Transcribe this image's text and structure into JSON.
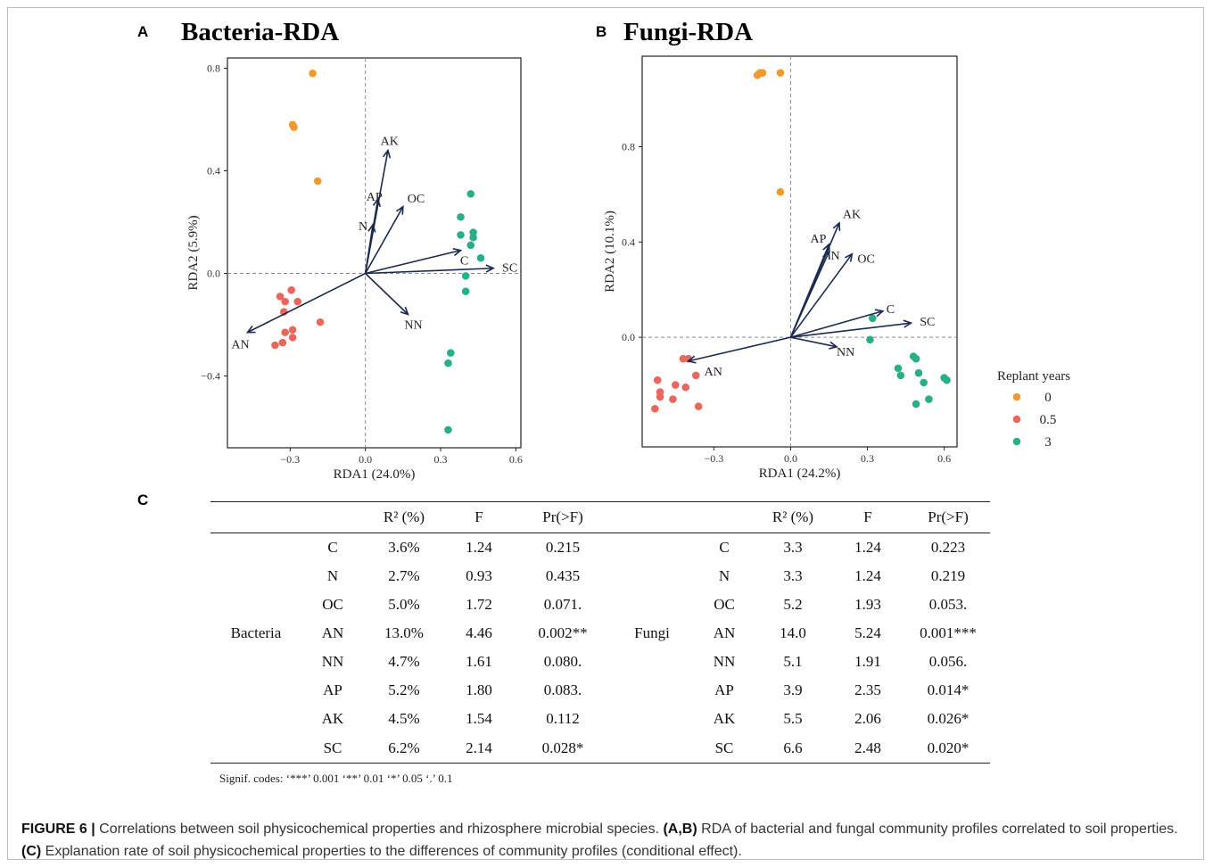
{
  "panels": {
    "a_letter": "A",
    "b_letter": "B",
    "c_letter": "C"
  },
  "chart_data": [
    {
      "type": "scatter",
      "title": "Bacteria-RDA",
      "xlabel": "RDA1 (24.0%)",
      "ylabel": "RDA2 (5.9%)",
      "xlim": [
        -0.55,
        0.62
      ],
      "ylim": [
        -0.68,
        0.84
      ],
      "xticks": [
        -0.3,
        0.0,
        0.3,
        0.6
      ],
      "xtick_labels": [
        "−0.3",
        "0.0",
        "0.3",
        "0.6"
      ],
      "yticks": [
        -0.4,
        0.0,
        0.4,
        0.8
      ],
      "ytick_labels": [
        "−0.4",
        "0.0",
        "0.4",
        "0.8"
      ],
      "grid": false,
      "reference_lines": "dashed lines at x=0 and y=0",
      "series": [
        {
          "name": "0",
          "color": "#f09a2e",
          "points": [
            [
              -0.21,
              0.78
            ],
            [
              -0.29,
              0.58
            ],
            [
              -0.285,
              0.57
            ],
            [
              -0.19,
              0.36
            ]
          ]
        },
        {
          "name": "0.5",
          "color": "#e8685e",
          "points": [
            [
              -0.34,
              -0.09
            ],
            [
              -0.32,
              -0.11
            ],
            [
              -0.295,
              -0.065
            ],
            [
              -0.27,
              -0.11
            ],
            [
              -0.325,
              -0.15
            ],
            [
              -0.18,
              -0.19
            ],
            [
              -0.32,
              -0.23
            ],
            [
              -0.29,
              -0.22
            ],
            [
              -0.29,
              -0.25
            ],
            [
              -0.33,
              -0.27
            ],
            [
              -0.36,
              -0.28
            ]
          ]
        },
        {
          "name": "3",
          "color": "#2aae88",
          "points": [
            [
              0.42,
              0.31
            ],
            [
              0.38,
              0.22
            ],
            [
              0.38,
              0.15
            ],
            [
              0.43,
              0.16
            ],
            [
              0.43,
              0.14
            ],
            [
              0.42,
              0.11
            ],
            [
              0.46,
              0.06
            ],
            [
              0.4,
              -0.01
            ],
            [
              0.4,
              -0.07
            ],
            [
              0.34,
              -0.31
            ],
            [
              0.33,
              -0.35
            ],
            [
              0.33,
              -0.61
            ]
          ]
        }
      ],
      "vectors": [
        {
          "label": "AK",
          "x": 0.09,
          "y": 0.48
        },
        {
          "label": "AP",
          "x": 0.05,
          "y": 0.29
        },
        {
          "label": "OC",
          "x": 0.15,
          "y": 0.26
        },
        {
          "label": "N",
          "x": 0.03,
          "y": 0.19
        },
        {
          "label": "C",
          "x": 0.38,
          "y": 0.09
        },
        {
          "label": "SC",
          "x": 0.51,
          "y": 0.02
        },
        {
          "label": "NN",
          "x": 0.17,
          "y": -0.16
        },
        {
          "label": "AN",
          "x": -0.47,
          "y": -0.23
        }
      ]
    },
    {
      "type": "scatter",
      "title": "Fungi-RDA",
      "xlabel": "RDA1 (24.2%)",
      "ylabel": "RDA2 (10.1%)",
      "xlim": [
        -0.58,
        0.65
      ],
      "ylim": [
        -0.46,
        1.18
      ],
      "xticks": [
        -0.3,
        0.0,
        0.3,
        0.6
      ],
      "xtick_labels": [
        "−0.3",
        "0.0",
        "0.3",
        "0.6"
      ],
      "yticks": [
        0.0,
        0.4,
        0.8
      ],
      "ytick_labels": [
        "0.0",
        "0.4",
        "0.8"
      ],
      "grid": false,
      "reference_lines": "dashed lines at x=0 and y=0",
      "series": [
        {
          "name": "0",
          "color": "#f09a2e",
          "points": [
            [
              -0.13,
              1.1
            ],
            [
              -0.12,
              1.11
            ],
            [
              -0.11,
              1.11
            ],
            [
              -0.04,
              1.11
            ],
            [
              -0.04,
              0.61
            ]
          ]
        },
        {
          "name": "0.5",
          "color": "#e8685e",
          "points": [
            [
              -0.42,
              -0.09
            ],
            [
              -0.4,
              -0.09
            ],
            [
              -0.37,
              -0.16
            ],
            [
              -0.52,
              -0.18
            ],
            [
              -0.45,
              -0.2
            ],
            [
              -0.41,
              -0.21
            ],
            [
              -0.51,
              -0.23
            ],
            [
              -0.51,
              -0.25
            ],
            [
              -0.46,
              -0.26
            ],
            [
              -0.36,
              -0.29
            ],
            [
              -0.53,
              -0.3
            ]
          ]
        },
        {
          "name": "3",
          "color": "#2aae88",
          "points": [
            [
              0.32,
              0.08
            ],
            [
              0.31,
              -0.01
            ],
            [
              0.48,
              -0.08
            ],
            [
              0.49,
              -0.09
            ],
            [
              0.42,
              -0.13
            ],
            [
              0.43,
              -0.16
            ],
            [
              0.5,
              -0.15
            ],
            [
              0.52,
              -0.19
            ],
            [
              0.6,
              -0.17
            ],
            [
              0.61,
              -0.18
            ],
            [
              0.54,
              -0.26
            ],
            [
              0.49,
              -0.28
            ]
          ]
        }
      ],
      "vectors": [
        {
          "label": "AK",
          "x": 0.19,
          "y": 0.48
        },
        {
          "label": "AP",
          "x": 0.15,
          "y": 0.39
        },
        {
          "label": "N",
          "x": 0.15,
          "y": 0.36
        },
        {
          "label": "OC",
          "x": 0.24,
          "y": 0.35
        },
        {
          "label": "C",
          "x": 0.36,
          "y": 0.11
        },
        {
          "label": "SC",
          "x": 0.47,
          "y": 0.06
        },
        {
          "label": "NN",
          "x": 0.18,
          "y": -0.04
        },
        {
          "label": "AN",
          "x": -0.4,
          "y": -0.1
        }
      ]
    }
  ],
  "legend": {
    "title": "Replant years",
    "items": [
      {
        "label": "0",
        "color": "#f09a2e"
      },
      {
        "label": "0.5",
        "color": "#e8685e"
      },
      {
        "label": "3",
        "color": "#2aae88"
      }
    ]
  },
  "table": {
    "headers": [
      "",
      "",
      "R² (%)",
      "F",
      "Pr(>F)",
      "",
      "",
      "R² (%)",
      "F",
      "Pr(>F)"
    ],
    "left_group": "Bacteria",
    "right_group": "Fungi",
    "rows": [
      [
        "C",
        "3.6%",
        "1.24",
        "0.215",
        "C",
        "3.3",
        "1.24",
        "0.223"
      ],
      [
        "N",
        "2.7%",
        "0.93",
        "0.435",
        "N",
        "3.3",
        "1.24",
        "0.219"
      ],
      [
        "OC",
        "5.0%",
        "1.72",
        "0.071.",
        "OC",
        "5.2",
        "1.93",
        "0.053."
      ],
      [
        "AN",
        "13.0%",
        "4.46",
        "0.002**",
        "AN",
        "14.0",
        "5.24",
        "0.001***"
      ],
      [
        "NN",
        "4.7%",
        "1.61",
        "0.080.",
        "NN",
        "5.1",
        "1.91",
        "0.056."
      ],
      [
        "AP",
        "5.2%",
        "1.80",
        "0.083.",
        "AP",
        "3.9",
        "2.35",
        "0.014*"
      ],
      [
        "AK",
        "4.5%",
        "1.54",
        "0.112",
        "AK",
        "5.5",
        "2.06",
        "0.026*"
      ],
      [
        "SC",
        "6.2%",
        "2.14",
        "0.028*",
        "SC",
        "6.6",
        "2.48",
        "0.020*"
      ]
    ],
    "signif": "Signif. codes:  ‘***’ 0.001   ‘**’ 0.01   ‘*’ 0.05   ‘.’ 0.1"
  },
  "caption": {
    "label": "FIGURE 6 |",
    "text1": " Correlations between soil physicochemical properties and rhizosphere microbial species. ",
    "bold1": "(A,B)",
    "text2": " RDA of bacterial and fungal community profiles correlated to soil properties. ",
    "bold2": "(C)",
    "text3": " Explanation rate of soil physicochemical properties to the differences of community profiles (conditional effect)."
  }
}
